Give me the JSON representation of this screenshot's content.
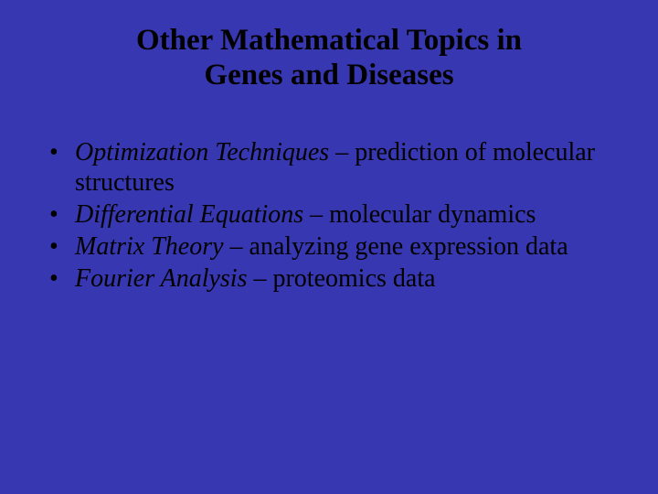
{
  "background_color": "#3737b1",
  "text_color": "#000000",
  "font_family": "Times New Roman",
  "title": {
    "line1": "Other Mathematical Topics in",
    "line2": "Genes and Diseases",
    "fontsize": 33,
    "font_weight": "bold",
    "align": "center"
  },
  "bullets": {
    "fontsize": 28,
    "marker": "•",
    "items": [
      {
        "topic": "Optimization Techniques",
        "rest": " – prediction of molecular structures"
      },
      {
        "topic": "Differential Equations",
        "rest": " – molecular dynamics"
      },
      {
        "topic": "Matrix Theory",
        "rest": " – analyzing gene expression data"
      },
      {
        "topic": "Fourier Analysis",
        "rest": " – proteomics data"
      }
    ]
  }
}
